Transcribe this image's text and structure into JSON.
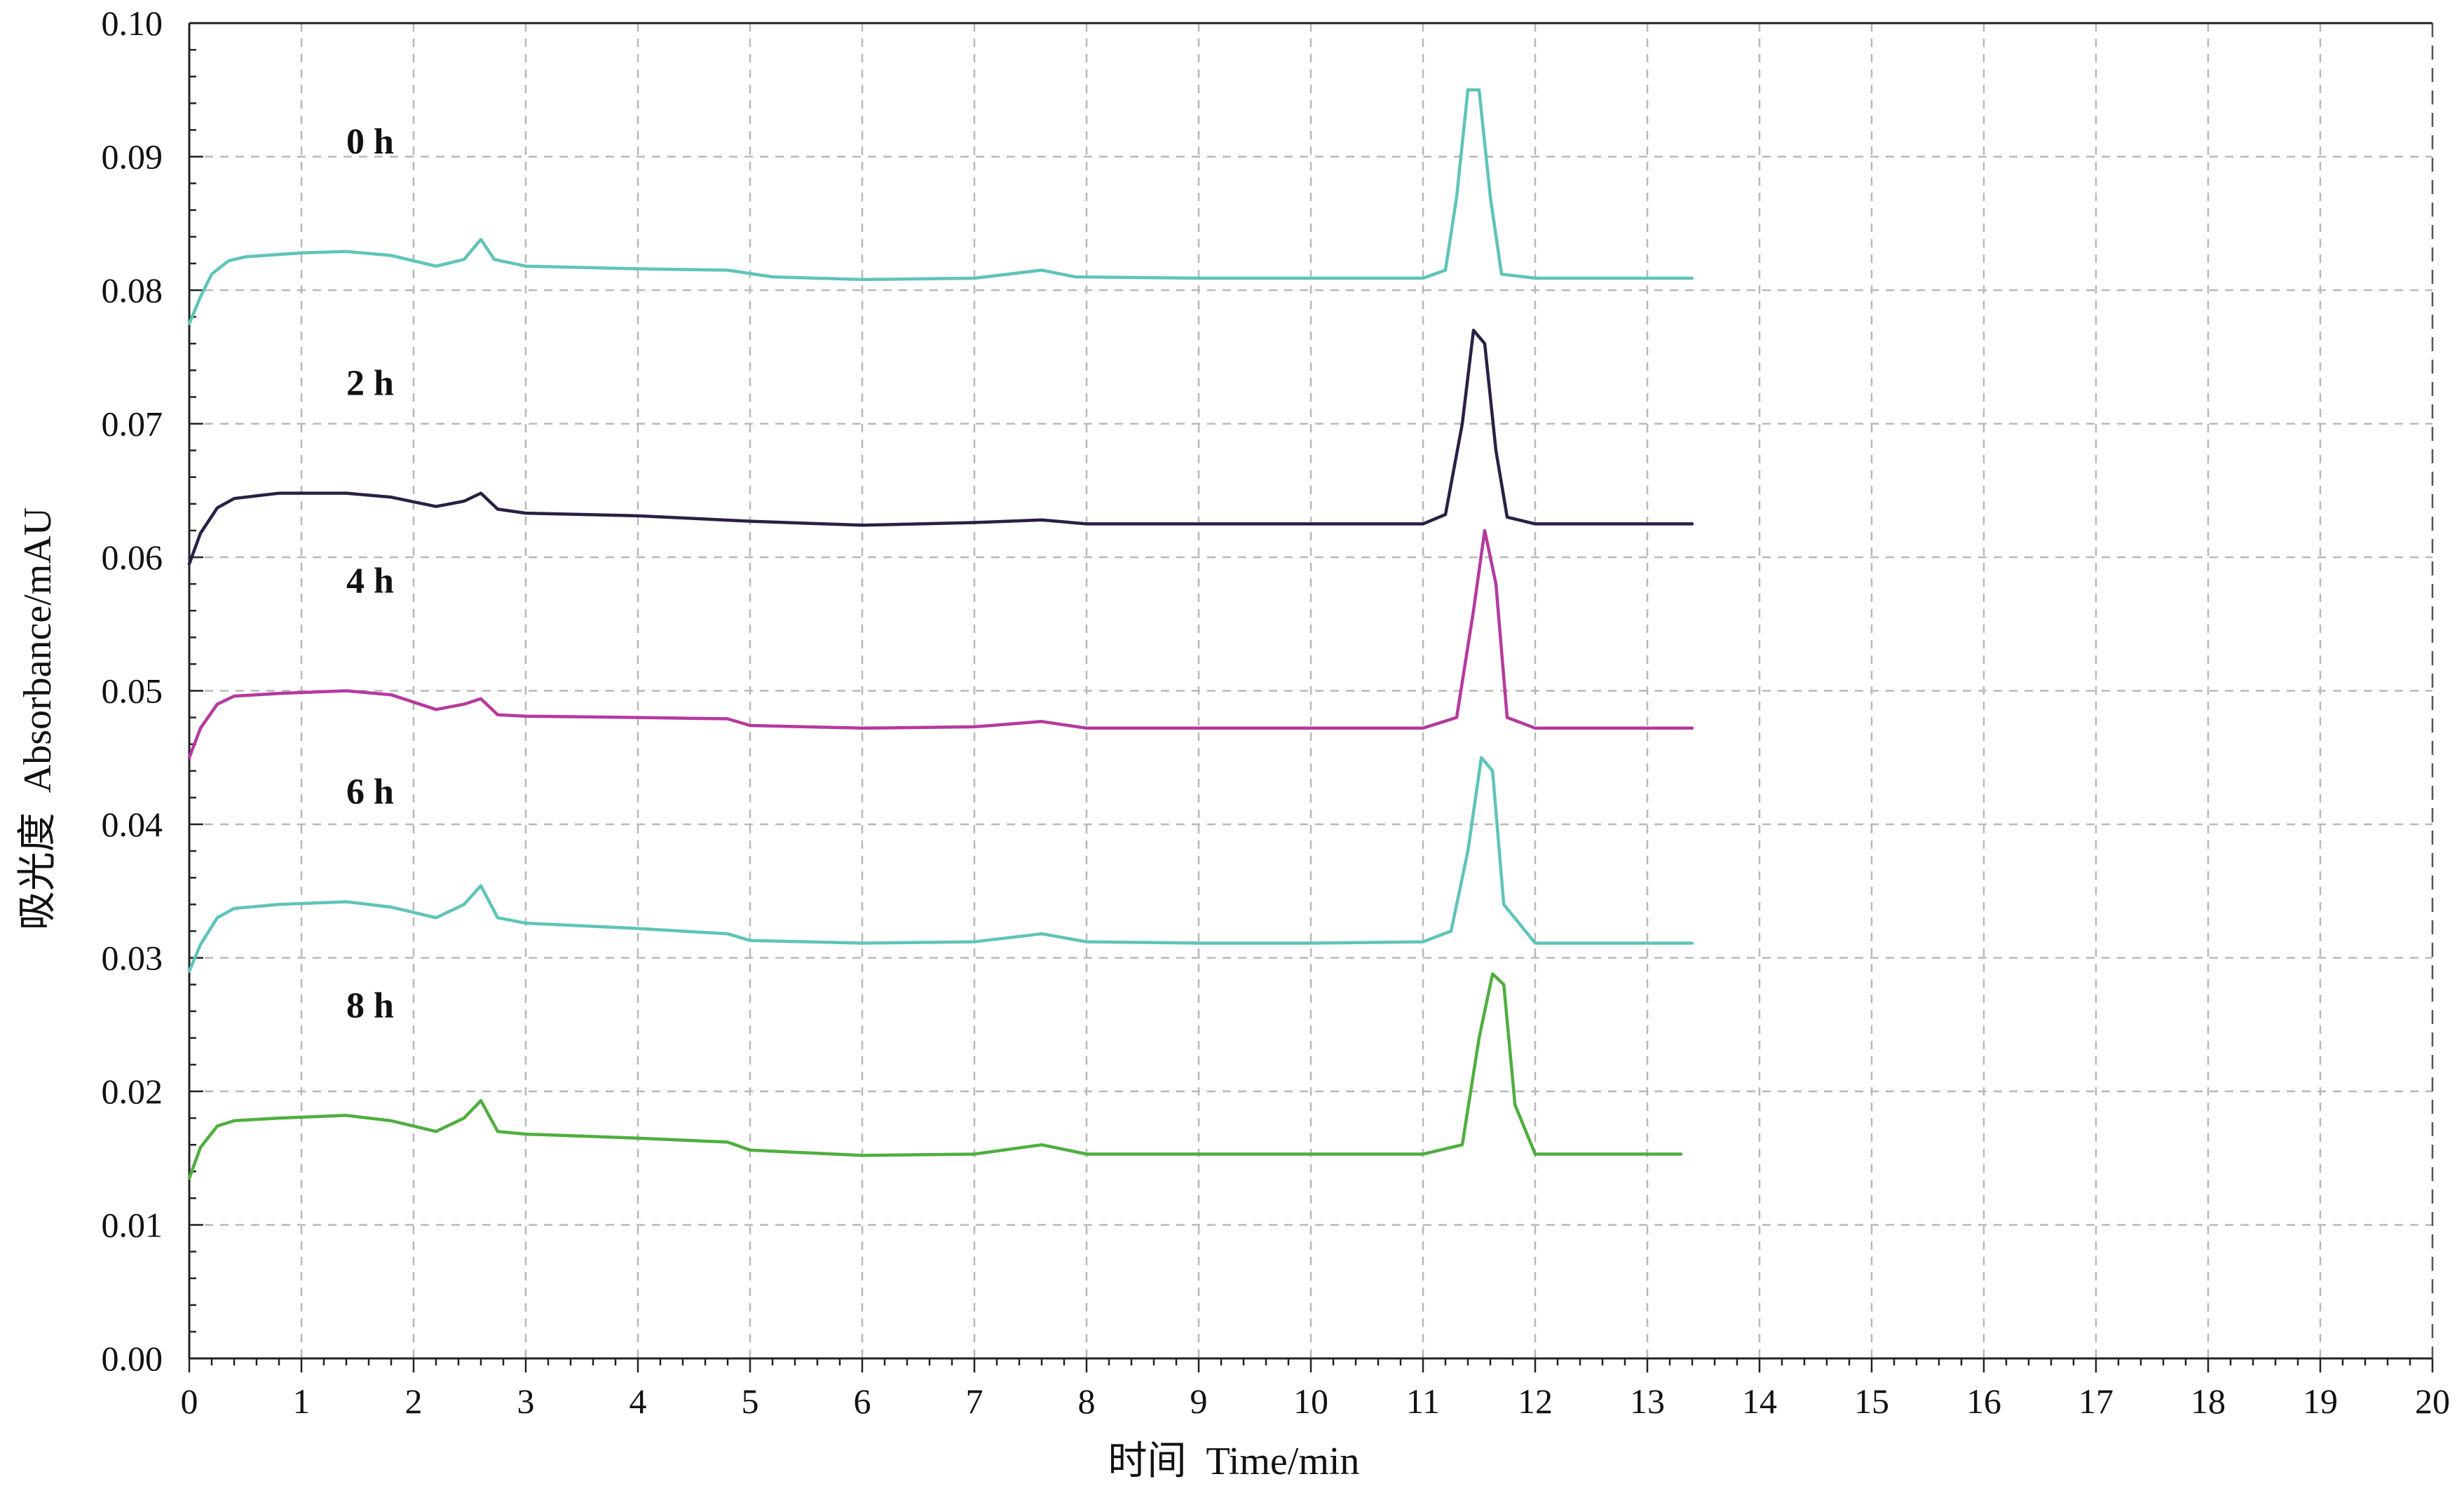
{
  "chart_data": {
    "type": "line",
    "title": "",
    "xlabel": "时间  Time/min",
    "ylabel": "吸光度  Absorbance/mAU",
    "xlim": [
      0,
      20
    ],
    "ylim": [
      0,
      0.1
    ],
    "x_ticks": [
      "0",
      "1",
      "2",
      "3",
      "4",
      "5",
      "6",
      "7",
      "8",
      "9",
      "10",
      "11",
      "12",
      "13",
      "14",
      "15",
      "16",
      "17",
      "18",
      "19",
      "20"
    ],
    "y_ticks": [
      "0.00",
      "0.01",
      "0.02",
      "0.03",
      "0.04",
      "0.05",
      "0.06",
      "0.07",
      "0.08",
      "0.09",
      "0.10"
    ],
    "grid": true,
    "legend": "inline labels above each trace",
    "series": [
      {
        "name": "0 h",
        "color": "#5fc4b8",
        "points": [
          [
            0,
            0.0775
          ],
          [
            0.1,
            0.0795
          ],
          [
            0.2,
            0.0812
          ],
          [
            0.35,
            0.0822
          ],
          [
            0.5,
            0.0825
          ],
          [
            1.0,
            0.0828
          ],
          [
            1.4,
            0.0829
          ],
          [
            1.8,
            0.0826
          ],
          [
            2.2,
            0.0818
          ],
          [
            2.45,
            0.0823
          ],
          [
            2.6,
            0.0838
          ],
          [
            2.72,
            0.0823
          ],
          [
            3.0,
            0.0818
          ],
          [
            4.0,
            0.0816
          ],
          [
            4.8,
            0.0815
          ],
          [
            5.2,
            0.081
          ],
          [
            6.0,
            0.0808
          ],
          [
            7.0,
            0.0809
          ],
          [
            7.6,
            0.0815
          ],
          [
            7.9,
            0.081
          ],
          [
            9.0,
            0.0809
          ],
          [
            10.0,
            0.0809
          ],
          [
            11.0,
            0.0809
          ],
          [
            11.2,
            0.0815
          ],
          [
            11.3,
            0.087
          ],
          [
            11.4,
            0.095
          ],
          [
            11.5,
            0.095
          ],
          [
            11.6,
            0.087
          ],
          [
            11.7,
            0.0812
          ],
          [
            12.0,
            0.0809
          ],
          [
            13.0,
            0.0809
          ],
          [
            13.4,
            0.0809
          ]
        ]
      },
      {
        "name": "2 h",
        "color": "#2b1f45",
        "points": [
          [
            0,
            0.0595
          ],
          [
            0.1,
            0.0618
          ],
          [
            0.25,
            0.0637
          ],
          [
            0.4,
            0.0644
          ],
          [
            0.8,
            0.0648
          ],
          [
            1.4,
            0.0648
          ],
          [
            1.8,
            0.0645
          ],
          [
            2.2,
            0.0638
          ],
          [
            2.45,
            0.0642
          ],
          [
            2.6,
            0.0648
          ],
          [
            2.75,
            0.0636
          ],
          [
            3.0,
            0.0633
          ],
          [
            4.0,
            0.0631
          ],
          [
            5.0,
            0.0627
          ],
          [
            6.0,
            0.0624
          ],
          [
            7.0,
            0.0626
          ],
          [
            7.6,
            0.0628
          ],
          [
            8.0,
            0.0625
          ],
          [
            9.0,
            0.0625
          ],
          [
            10.0,
            0.0625
          ],
          [
            11.0,
            0.0625
          ],
          [
            11.2,
            0.0632
          ],
          [
            11.35,
            0.07
          ],
          [
            11.45,
            0.077
          ],
          [
            11.55,
            0.076
          ],
          [
            11.65,
            0.068
          ],
          [
            11.75,
            0.063
          ],
          [
            12.0,
            0.0625
          ],
          [
            13.0,
            0.0625
          ],
          [
            13.4,
            0.0625
          ]
        ]
      },
      {
        "name": "4 h",
        "color": "#b5399e",
        "points": [
          [
            0,
            0.045
          ],
          [
            0.1,
            0.0472
          ],
          [
            0.25,
            0.049
          ],
          [
            0.4,
            0.0496
          ],
          [
            0.8,
            0.0498
          ],
          [
            1.4,
            0.05
          ],
          [
            1.8,
            0.0497
          ],
          [
            2.2,
            0.0486
          ],
          [
            2.45,
            0.049
          ],
          [
            2.6,
            0.0494
          ],
          [
            2.75,
            0.0482
          ],
          [
            3.0,
            0.0481
          ],
          [
            4.0,
            0.048
          ],
          [
            4.8,
            0.0479
          ],
          [
            5.0,
            0.0474
          ],
          [
            6.0,
            0.0472
          ],
          [
            7.0,
            0.0473
          ],
          [
            7.6,
            0.0477
          ],
          [
            8.0,
            0.0472
          ],
          [
            9.0,
            0.0472
          ],
          [
            10.0,
            0.0472
          ],
          [
            11.0,
            0.0472
          ],
          [
            11.3,
            0.048
          ],
          [
            11.45,
            0.056
          ],
          [
            11.55,
            0.062
          ],
          [
            11.65,
            0.058
          ],
          [
            11.75,
            0.048
          ],
          [
            12.0,
            0.0472
          ],
          [
            13.0,
            0.0472
          ],
          [
            13.4,
            0.0472
          ]
        ]
      },
      {
        "name": "6 h",
        "color": "#5fc4b8",
        "points": [
          [
            0,
            0.029
          ],
          [
            0.1,
            0.031
          ],
          [
            0.25,
            0.033
          ],
          [
            0.4,
            0.0337
          ],
          [
            0.8,
            0.034
          ],
          [
            1.4,
            0.0342
          ],
          [
            1.8,
            0.0338
          ],
          [
            2.2,
            0.033
          ],
          [
            2.45,
            0.034
          ],
          [
            2.6,
            0.0354
          ],
          [
            2.75,
            0.033
          ],
          [
            3.0,
            0.0326
          ],
          [
            4.0,
            0.0322
          ],
          [
            4.8,
            0.0318
          ],
          [
            5.0,
            0.0313
          ],
          [
            6.0,
            0.0311
          ],
          [
            7.0,
            0.0312
          ],
          [
            7.6,
            0.0318
          ],
          [
            8.0,
            0.0312
          ],
          [
            9.0,
            0.0311
          ],
          [
            10.0,
            0.0311
          ],
          [
            11.0,
            0.0312
          ],
          [
            11.25,
            0.032
          ],
          [
            11.4,
            0.038
          ],
          [
            11.52,
            0.045
          ],
          [
            11.62,
            0.044
          ],
          [
            11.72,
            0.034
          ],
          [
            12.0,
            0.0311
          ],
          [
            13.0,
            0.0311
          ],
          [
            13.4,
            0.0311
          ]
        ]
      },
      {
        "name": "8 h",
        "color": "#4fae3f",
        "points": [
          [
            0,
            0.0135
          ],
          [
            0.1,
            0.0158
          ],
          [
            0.25,
            0.0174
          ],
          [
            0.4,
            0.0178
          ],
          [
            0.8,
            0.018
          ],
          [
            1.4,
            0.0182
          ],
          [
            1.8,
            0.0178
          ],
          [
            2.2,
            0.017
          ],
          [
            2.45,
            0.018
          ],
          [
            2.6,
            0.0193
          ],
          [
            2.75,
            0.017
          ],
          [
            3.0,
            0.0168
          ],
          [
            4.0,
            0.0165
          ],
          [
            4.8,
            0.0162
          ],
          [
            5.0,
            0.0156
          ],
          [
            6.0,
            0.0152
          ],
          [
            7.0,
            0.0153
          ],
          [
            7.6,
            0.016
          ],
          [
            8.0,
            0.0153
          ],
          [
            9.0,
            0.0153
          ],
          [
            10.0,
            0.0153
          ],
          [
            11.0,
            0.0153
          ],
          [
            11.35,
            0.016
          ],
          [
            11.5,
            0.024
          ],
          [
            11.62,
            0.0288
          ],
          [
            11.72,
            0.028
          ],
          [
            11.82,
            0.019
          ],
          [
            12.0,
            0.0153
          ],
          [
            13.0,
            0.0153
          ],
          [
            13.3,
            0.0153
          ]
        ]
      }
    ]
  }
}
